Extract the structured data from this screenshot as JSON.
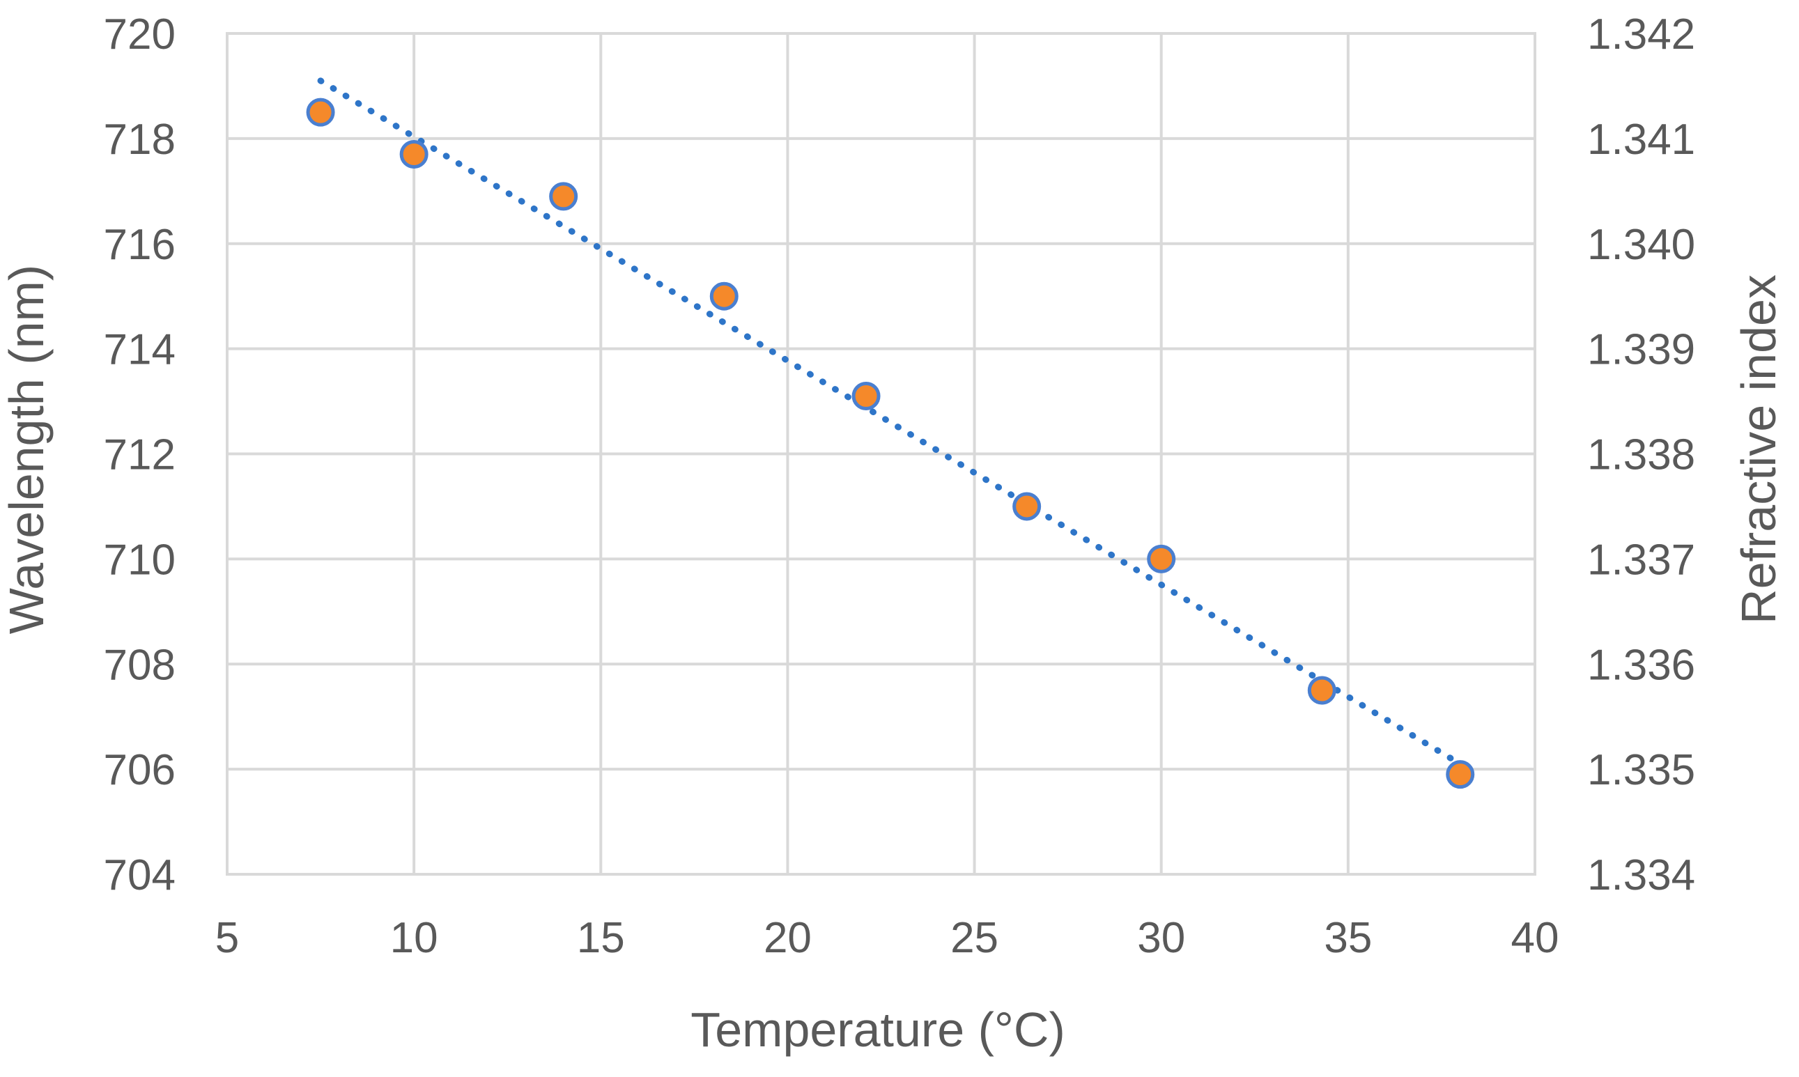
{
  "chart_data": {
    "type": "scatter",
    "title": "",
    "xlabel": "Temperature (°C)",
    "ylabel": "Wavelength (nm)",
    "y2label": "Refractive index",
    "xlim": [
      5,
      40
    ],
    "ylim": [
      704,
      720
    ],
    "y2lim": [
      1.334,
      1.342
    ],
    "x_ticks": [
      "5",
      "10",
      "15",
      "20",
      "25",
      "30",
      "35",
      "40"
    ],
    "y_ticks": [
      "704",
      "706",
      "708",
      "710",
      "712",
      "714",
      "716",
      "718",
      "720"
    ],
    "y2_ticks": [
      "1.334",
      "1.335",
      "1.336",
      "1.337",
      "1.338",
      "1.339",
      "1.340",
      "1.341",
      "1.342"
    ],
    "grid": true,
    "series": [
      {
        "name": "Wavelength",
        "x": [
          7.5,
          10.0,
          14.0,
          18.3,
          22.1,
          26.4,
          30.0,
          34.3,
          38.0
        ],
        "y": [
          718.5,
          717.7,
          716.9,
          715.0,
          713.1,
          711.0,
          710.0,
          707.5,
          705.9
        ]
      }
    ],
    "trendline": {
      "type": "linear",
      "x": [
        7.5,
        38.0
      ],
      "y": [
        719.1,
        706.1
      ],
      "style": "dotted"
    },
    "colors": {
      "points": "#f5892a",
      "point_edge": "#4a7fd0",
      "trend": "#2e75c8",
      "grid": "#d9d9d9",
      "text": "#595959"
    }
  }
}
